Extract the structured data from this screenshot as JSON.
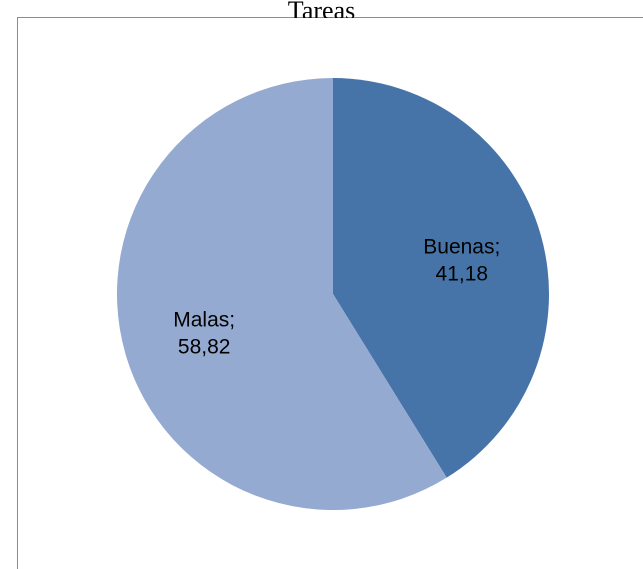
{
  "chart_data": {
    "type": "pie",
    "title": "Tareas",
    "categories": [
      "Buenas",
      "Malas"
    ],
    "values": [
      41.18,
      58.82
    ],
    "value_labels": [
      "41,18",
      "58,82"
    ],
    "colors": [
      "#4774a8",
      "#95aad1"
    ],
    "legend": "none",
    "start_angle_deg": 0,
    "direction": "clockwise"
  }
}
